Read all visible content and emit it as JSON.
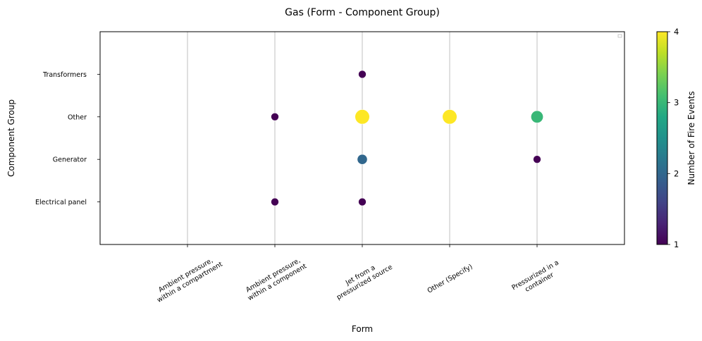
{
  "chart_data": {
    "type": "scatter",
    "title": "Gas (Form - Component Group)",
    "xlabel": "Form",
    "ylabel": "Component Group",
    "x_categories": [
      [
        "Ambient pressure,",
        "within a compartment"
      ],
      [
        "Ambient pressure,",
        "within a component"
      ],
      [
        "Jet from a",
        "pressurized source"
      ],
      [
        "Other (Specify)"
      ],
      [
        "Pressurized in a",
        "container"
      ]
    ],
    "y_categories": [
      "Electrical panel",
      "Generator",
      "Other",
      "Transformers"
    ],
    "points": [
      {
        "x": 1,
        "y": 0,
        "count": 1
      },
      {
        "x": 1,
        "y": 2,
        "count": 1
      },
      {
        "x": 2,
        "y": 0,
        "count": 1
      },
      {
        "x": 2,
        "y": 1,
        "count": 2
      },
      {
        "x": 2,
        "y": 2,
        "count": 4
      },
      {
        "x": 2,
        "y": 3,
        "count": 1
      },
      {
        "x": 3,
        "y": 2,
        "count": 4
      },
      {
        "x": 4,
        "y": 1,
        "count": 1
      },
      {
        "x": 4,
        "y": 2,
        "count": 3
      }
    ],
    "colorbar": {
      "label": "Number of Fire Events",
      "min": 1,
      "max": 4,
      "ticks": [
        "1",
        "2",
        "3",
        "4"
      ],
      "colormap": [
        "#440154",
        "#482475",
        "#414487",
        "#355f8d",
        "#2a788e",
        "#21918c",
        "#22a884",
        "#44bf70",
        "#7ad151",
        "#bddf26",
        "#fde725"
      ]
    },
    "xlim": [
      -1,
      5
    ],
    "ylim": [
      -1,
      4
    ],
    "grid": "vertical",
    "legend": "top-right (empty)"
  }
}
